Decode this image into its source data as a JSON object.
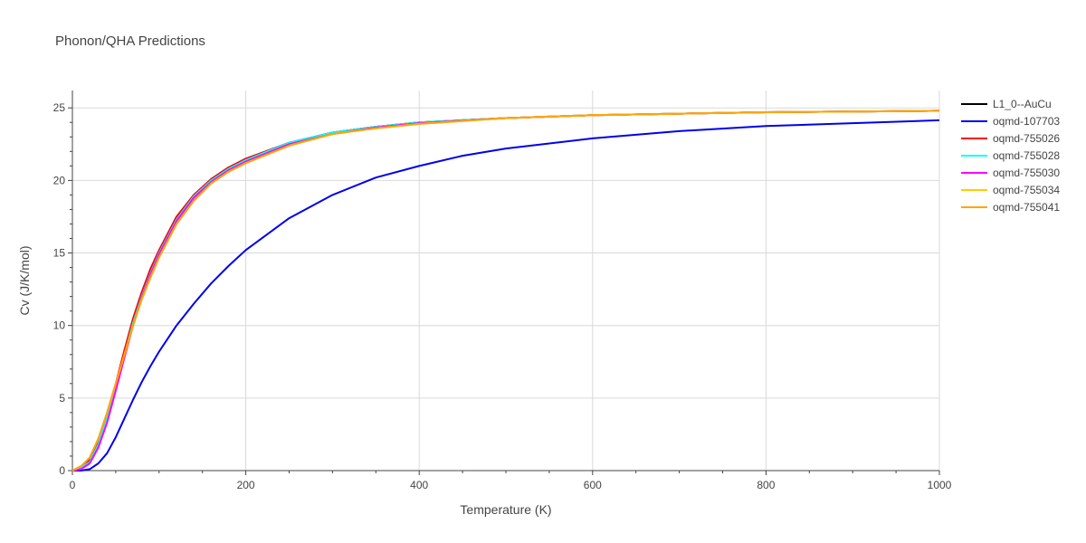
{
  "chart_data": {
    "type": "line",
    "title": "Phonon/QHA Predictions",
    "xlabel": "Temperature (K)",
    "ylabel": "Cv (J/K/mol)",
    "xlim": [
      0,
      1000
    ],
    "ylim": [
      0,
      26.2
    ],
    "xticks": [
      0,
      200,
      400,
      600,
      800,
      1000
    ],
    "yticks": [
      0,
      5,
      10,
      15,
      20,
      25
    ],
    "grid": true,
    "legend_position": "top-right",
    "series": [
      {
        "name": "L1_0--AuCu",
        "color": "#000000",
        "x": [
          0,
          10,
          20,
          30,
          40,
          50,
          60,
          70,
          80,
          90,
          100,
          120,
          140,
          160,
          180,
          200,
          250,
          300,
          350,
          400,
          500,
          600,
          700,
          800,
          900,
          1000
        ],
        "y": [
          0,
          0.3,
          0.8,
          2.0,
          3.8,
          5.8,
          8.0,
          10.2,
          12.0,
          13.6,
          15.0,
          17.3,
          18.9,
          20.0,
          20.8,
          21.4,
          22.6,
          23.3,
          23.7,
          24.0,
          24.3,
          24.5,
          24.6,
          24.7,
          24.75,
          24.8
        ]
      },
      {
        "name": "oqmd-107703",
        "color": "#0000ee",
        "x": [
          0,
          10,
          20,
          30,
          40,
          50,
          60,
          70,
          80,
          90,
          100,
          120,
          140,
          160,
          180,
          200,
          250,
          300,
          350,
          400,
          450,
          500,
          600,
          700,
          800,
          900,
          1000
        ],
        "y": [
          0,
          0,
          0.1,
          0.5,
          1.2,
          2.3,
          3.6,
          4.9,
          6.1,
          7.2,
          8.2,
          10.0,
          11.5,
          12.9,
          14.1,
          15.2,
          17.4,
          19.0,
          20.2,
          21.0,
          21.7,
          22.2,
          22.9,
          23.4,
          23.75,
          23.95,
          24.15
        ]
      },
      {
        "name": "oqmd-755026",
        "color": "#ff0000",
        "x": [
          0,
          10,
          20,
          30,
          40,
          50,
          60,
          70,
          80,
          90,
          100,
          120,
          140,
          160,
          180,
          200,
          250,
          300,
          350,
          400,
          500,
          600,
          700,
          800,
          900,
          1000
        ],
        "y": [
          0,
          0.2,
          0.7,
          2.0,
          3.9,
          6.0,
          8.3,
          10.5,
          12.3,
          13.9,
          15.2,
          17.5,
          19.0,
          20.1,
          20.9,
          21.5,
          22.6,
          23.3,
          23.7,
          24.0,
          24.3,
          24.5,
          24.6,
          24.7,
          24.75,
          24.8
        ]
      },
      {
        "name": "oqmd-755028",
        "color": "#00ffff",
        "x": [
          0,
          10,
          20,
          30,
          40,
          50,
          60,
          70,
          80,
          90,
          100,
          120,
          140,
          160,
          180,
          200,
          250,
          300,
          350,
          400,
          500,
          600,
          700,
          800,
          900,
          1000
        ],
        "y": [
          0,
          0.2,
          0.6,
          1.8,
          3.6,
          5.7,
          8.0,
          10.2,
          12.0,
          13.6,
          15.0,
          17.3,
          18.9,
          20.0,
          20.8,
          21.4,
          22.6,
          23.3,
          23.7,
          24.0,
          24.3,
          24.5,
          24.6,
          24.7,
          24.75,
          24.8
        ]
      },
      {
        "name": "oqmd-755030",
        "color": "#ff00ff",
        "x": [
          0,
          10,
          20,
          30,
          40,
          50,
          60,
          70,
          80,
          90,
          100,
          120,
          140,
          160,
          180,
          200,
          250,
          300,
          350,
          400,
          500,
          600,
          700,
          800,
          900,
          1000
        ],
        "y": [
          0,
          0.1,
          0.5,
          1.6,
          3.3,
          5.5,
          7.8,
          10.0,
          11.9,
          13.5,
          14.9,
          17.2,
          18.8,
          19.9,
          20.7,
          21.3,
          22.5,
          23.2,
          23.65,
          23.95,
          24.3,
          24.5,
          24.6,
          24.7,
          24.75,
          24.8
        ]
      },
      {
        "name": "oqmd-755034",
        "color": "#ffcc00",
        "x": [
          0,
          10,
          20,
          30,
          40,
          50,
          60,
          70,
          80,
          90,
          100,
          120,
          140,
          160,
          180,
          200,
          250,
          300,
          350,
          400,
          500,
          600,
          700,
          800,
          900,
          1000
        ],
        "y": [
          0,
          0.3,
          0.9,
          2.2,
          4.0,
          6.0,
          8.0,
          10.0,
          11.8,
          13.3,
          14.7,
          17.0,
          18.6,
          19.8,
          20.6,
          21.2,
          22.4,
          23.2,
          23.6,
          23.9,
          24.3,
          24.5,
          24.6,
          24.7,
          24.75,
          24.8
        ]
      },
      {
        "name": "oqmd-755041",
        "color": "#ffa500",
        "x": [
          0,
          10,
          20,
          30,
          40,
          50,
          60,
          70,
          80,
          90,
          100,
          120,
          140,
          160,
          180,
          200,
          250,
          300,
          350,
          400,
          500,
          600,
          700,
          800,
          900,
          1000
        ],
        "y": [
          0,
          0.3,
          0.9,
          2.2,
          4.0,
          6.0,
          8.0,
          10.0,
          11.8,
          13.3,
          14.7,
          17.0,
          18.6,
          19.8,
          20.6,
          21.2,
          22.4,
          23.2,
          23.6,
          23.9,
          24.3,
          24.5,
          24.6,
          24.7,
          24.75,
          24.8
        ]
      }
    ]
  }
}
